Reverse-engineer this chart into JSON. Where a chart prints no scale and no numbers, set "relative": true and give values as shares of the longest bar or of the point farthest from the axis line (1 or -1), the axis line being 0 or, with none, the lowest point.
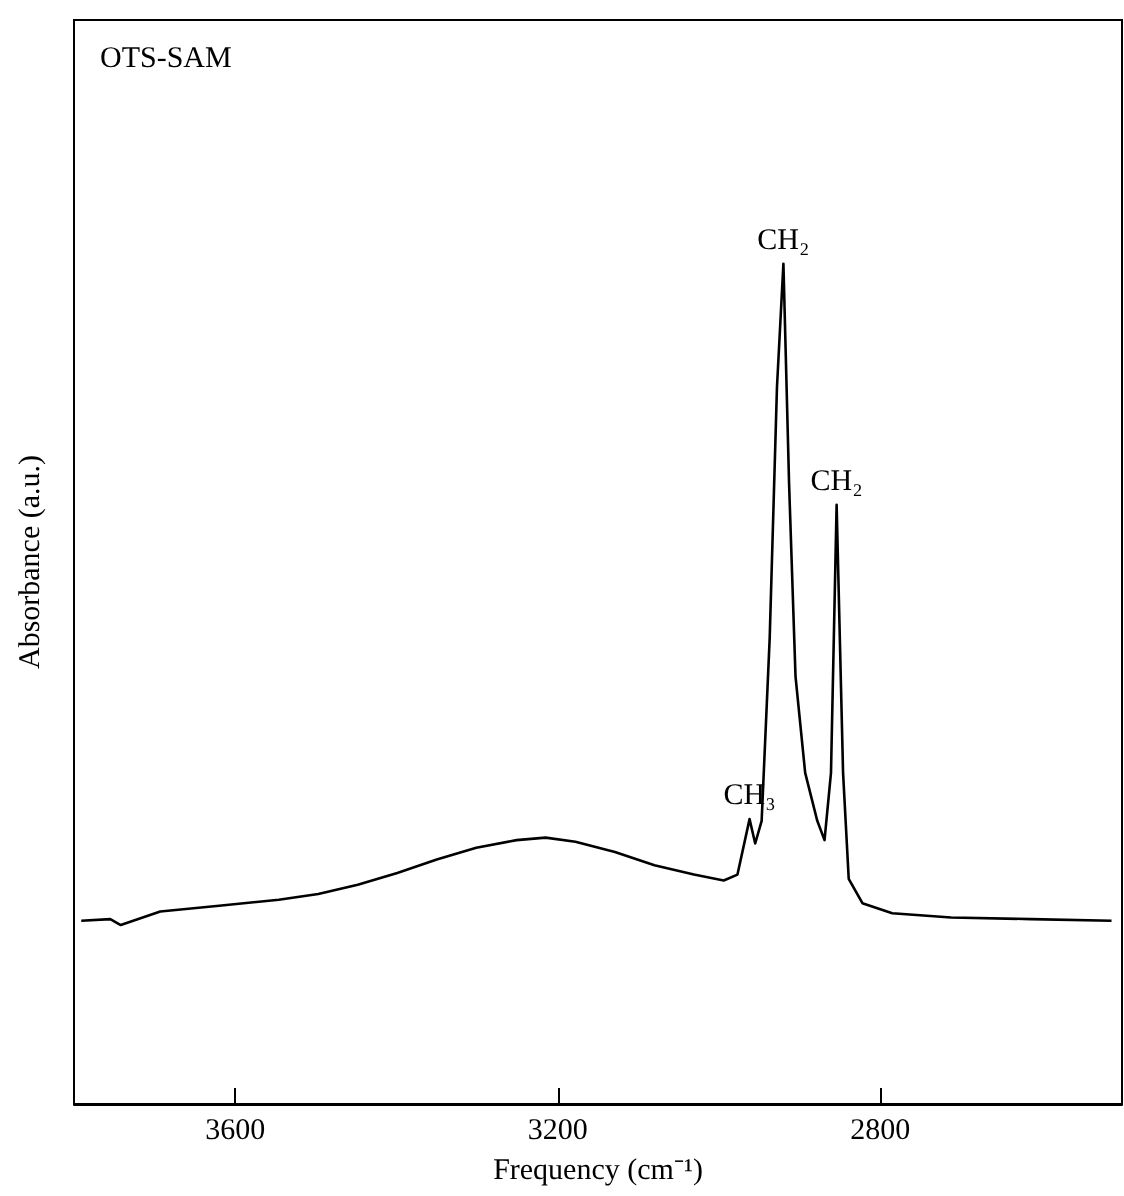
{
  "chart_data": {
    "type": "line",
    "relative": true,
    "xlabel": "Frequency (cm⁻¹)",
    "ylabel": "Absorbance (a.u.)",
    "xlim": [
      3800,
      2500
    ],
    "xticks": [
      3600,
      3200,
      2800
    ],
    "color": "#000000",
    "grid": false,
    "marker": "none",
    "line_style": "solid",
    "x": [
      3791,
      3755,
      3742,
      3693,
      3620,
      3546,
      3497,
      3448,
      3399,
      3350,
      3301,
      3251,
      3215,
      3178,
      3129,
      3080,
      3031,
      2994,
      2977,
      2962,
      2955,
      2947,
      2937,
      2928,
      2920,
      2913,
      2905,
      2893,
      2878,
      2869,
      2861,
      2854,
      2846,
      2839,
      2822,
      2785,
      2712,
      2613,
      2513
    ],
    "values": [
      0.218,
      0.22,
      0.213,
      0.229,
      0.236,
      0.243,
      0.25,
      0.261,
      0.275,
      0.291,
      0.305,
      0.314,
      0.317,
      0.312,
      0.3,
      0.284,
      0.273,
      0.266,
      0.273,
      0.339,
      0.31,
      0.337,
      0.555,
      0.853,
      1.0,
      0.739,
      0.509,
      0.394,
      0.337,
      0.314,
      0.394,
      0.713,
      0.394,
      0.268,
      0.239,
      0.227,
      0.222,
      0.22,
      0.218
    ],
    "annotations": [
      "OTS-SAM",
      {
        "text": "CH₂",
        "x": 2920,
        "y": 1.0
      },
      {
        "text": "CH₂",
        "x": 2854,
        "y": 0.713
      },
      {
        "text": "CH₃",
        "x": 2962,
        "y": 0.339
      }
    ]
  }
}
